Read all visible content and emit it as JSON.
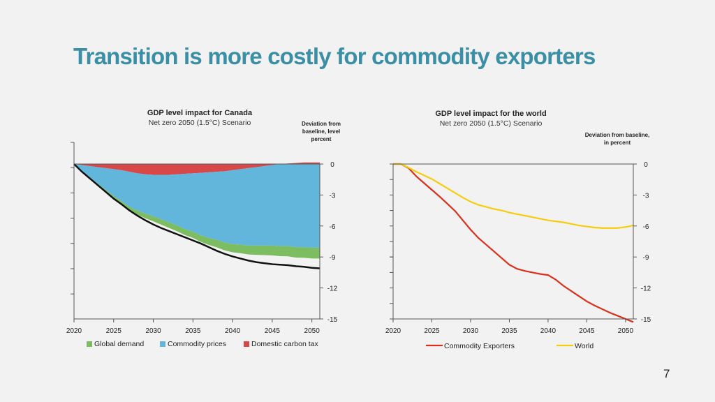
{
  "slide": {
    "title": "Transition is more costly for commodity exporters",
    "page_number": "7"
  },
  "chart_data": [
    {
      "type": "area",
      "title": "GDP level impact for Canada",
      "subtitle": "Net zero 2050 (1.5°C) Scenario",
      "ylabel": "Deviation from baseline, level percent",
      "xlim": [
        2020,
        2051
      ],
      "ylim": [
        -15,
        0
      ],
      "y_ticks": [
        0,
        -3,
        -6,
        -9,
        -12,
        -15
      ],
      "x_ticks": [
        2020,
        2025,
        2030,
        2035,
        2040,
        2045,
        2050
      ],
      "x": [
        2020,
        2021,
        2022,
        2023,
        2024,
        2025,
        2026,
        2027,
        2028,
        2029,
        2030,
        2031,
        2032,
        2033,
        2034,
        2035,
        2036,
        2037,
        2038,
        2039,
        2040,
        2041,
        2042,
        2043,
        2044,
        2045,
        2046,
        2047,
        2048,
        2049,
        2050,
        2051
      ],
      "series": [
        {
          "name": "Domestic carbon tax",
          "color": "#d94848",
          "values": [
            0,
            -0.1,
            -0.2,
            -0.3,
            -0.4,
            -0.5,
            -0.6,
            -0.75,
            -0.9,
            -1.0,
            -1.05,
            -1.05,
            -1.05,
            -1.0,
            -0.95,
            -0.9,
            -0.85,
            -0.8,
            -0.75,
            -0.7,
            -0.6,
            -0.5,
            -0.4,
            -0.3,
            -0.2,
            -0.1,
            0.0,
            0.05,
            0.1,
            0.15,
            0.15,
            0.15
          ]
        },
        {
          "name": "Commodity prices",
          "color": "#62b6dc",
          "values": [
            0,
            -0.6,
            -1.1,
            -1.6,
            -2.1,
            -2.6,
            -3.0,
            -3.4,
            -3.6,
            -3.8,
            -4.0,
            -4.3,
            -4.6,
            -4.95,
            -5.35,
            -5.65,
            -6.05,
            -6.35,
            -6.6,
            -6.9,
            -7.15,
            -7.3,
            -7.5,
            -7.6,
            -7.7,
            -7.8,
            -7.95,
            -7.95,
            -8.05,
            -8.05,
            -8.1,
            -8.1
          ]
        },
        {
          "name": "Global demand",
          "color": "#7dbd62",
          "values": [
            0,
            -0.05,
            -0.1,
            -0.15,
            -0.2,
            -0.25,
            -0.3,
            -0.35,
            -0.4,
            -0.45,
            -0.5,
            -0.52,
            -0.54,
            -0.56,
            -0.58,
            -0.6,
            -0.64,
            -0.68,
            -0.72,
            -0.76,
            -0.8,
            -0.83,
            -0.86,
            -0.89,
            -0.92,
            -0.95,
            -0.97,
            -0.99,
            -1.01,
            -1.03,
            -1.05,
            -1.05
          ]
        }
      ],
      "total_line": {
        "color": "#111111",
        "values": [
          0,
          -0.75,
          -1.4,
          -2.05,
          -2.7,
          -3.35,
          -3.9,
          -4.5,
          -5.0,
          -5.45,
          -5.85,
          -6.2,
          -6.5,
          -6.8,
          -7.1,
          -7.4,
          -7.7,
          -8.05,
          -8.4,
          -8.7,
          -8.95,
          -9.15,
          -9.35,
          -9.5,
          -9.6,
          -9.7,
          -9.75,
          -9.8,
          -9.9,
          -9.95,
          -10.05,
          -10.1
        ]
      },
      "legend": [
        {
          "label": "Global demand",
          "color": "#7dbd62"
        },
        {
          "label": "Commodity prices",
          "color": "#62b6dc"
        },
        {
          "label": "Domestic carbon tax",
          "color": "#d94848"
        }
      ]
    },
    {
      "type": "line",
      "title": "GDP level impact for the world",
      "subtitle": "Net zero 2050 (1.5°C) Scenario",
      "ylabel": "Deviation from baseline, in percent",
      "xlim": [
        2020,
        2051
      ],
      "ylim": [
        -15,
        0
      ],
      "y_ticks": [
        0,
        -3,
        -6,
        -9,
        -12,
        -15
      ],
      "x_ticks": [
        2020,
        2025,
        2030,
        2035,
        2040,
        2045,
        2050
      ],
      "x": [
        2020,
        2021,
        2022,
        2023,
        2024,
        2025,
        2026,
        2027,
        2028,
        2029,
        2030,
        2031,
        2032,
        2033,
        2034,
        2035,
        2036,
        2037,
        2038,
        2039,
        2040,
        2041,
        2042,
        2043,
        2044,
        2045,
        2046,
        2047,
        2048,
        2049,
        2050,
        2051
      ],
      "series": [
        {
          "name": "Commodity Exporters",
          "color": "#d9301c",
          "values": [
            0,
            0,
            -0.4,
            -1.2,
            -1.85,
            -2.5,
            -3.15,
            -3.85,
            -4.55,
            -5.45,
            -6.35,
            -7.15,
            -7.8,
            -8.45,
            -9.1,
            -9.75,
            -10.15,
            -10.35,
            -10.5,
            -10.65,
            -10.75,
            -11.2,
            -11.8,
            -12.3,
            -12.8,
            -13.3,
            -13.7,
            -14.05,
            -14.4,
            -14.7,
            -15.0,
            -15.3
          ]
        },
        {
          "name": "World",
          "color": "#f5cd0e",
          "values": [
            0,
            0,
            -0.35,
            -0.75,
            -1.1,
            -1.45,
            -1.9,
            -2.35,
            -2.8,
            -3.25,
            -3.65,
            -3.95,
            -4.15,
            -4.35,
            -4.5,
            -4.7,
            -4.85,
            -5.0,
            -5.15,
            -5.3,
            -5.45,
            -5.55,
            -5.65,
            -5.8,
            -5.95,
            -6.05,
            -6.15,
            -6.2,
            -6.2,
            -6.2,
            -6.1,
            -5.95
          ]
        }
      ],
      "legend": [
        {
          "label": "Commodity Exporters",
          "color": "#d9301c"
        },
        {
          "label": "World",
          "color": "#f5cd0e"
        }
      ]
    }
  ]
}
